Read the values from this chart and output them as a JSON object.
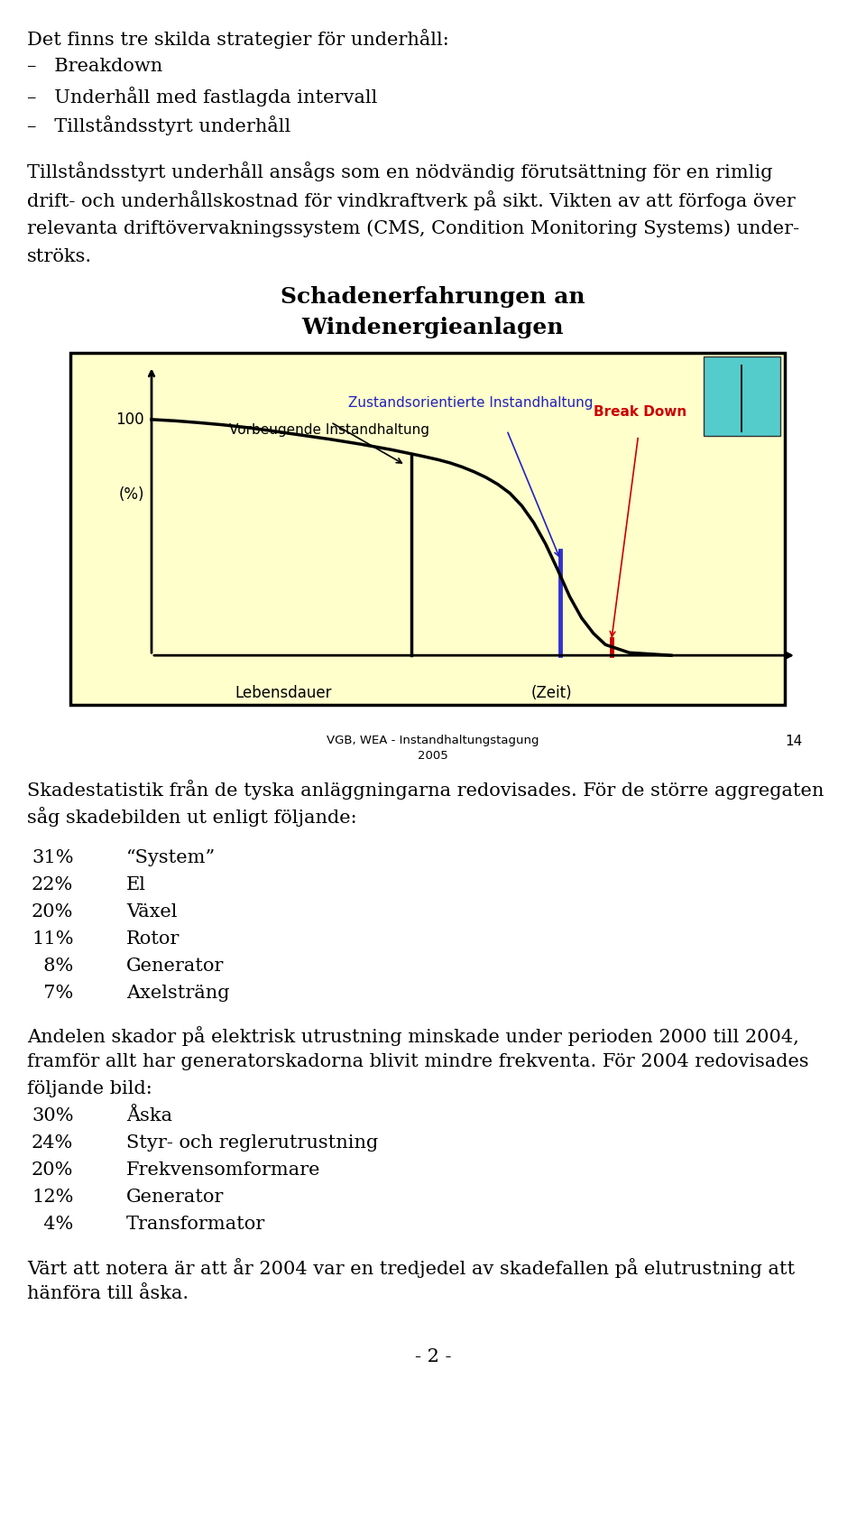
{
  "page_bg": "#ffffff",
  "font_family": "serif",
  "top_lines": [
    {
      "text": "Det finns tre skilda strategier för underhåll:",
      "indent": 0,
      "bold": false
    },
    {
      "text": "–   Breakdown",
      "indent": 0,
      "bold": false
    },
    {
      "text": "–   Underhåll med fastlagda intervall",
      "indent": 0,
      "bold": false
    },
    {
      "text": "–   Tillståndsstyrt underhåll",
      "indent": 0,
      "bold": false
    },
    {
      "text": "",
      "indent": 0,
      "bold": false
    },
    {
      "text": "Tillståndsstyrt underhåll ansågs som en nödvändig förutsättning för en rimlig",
      "indent": 0,
      "bold": false
    },
    {
      "text": "drift- och underhållskostnad för vindkraftverk på sikt. Vikten av att förfoga över",
      "indent": 0,
      "bold": false
    },
    {
      "text": "relevanta driftövervakningssystem (CMS, Condition Monitoring Systems) under-",
      "indent": 0,
      "bold": false
    },
    {
      "text": "ströks.",
      "indent": 0,
      "bold": false
    }
  ],
  "diag_title1": "Schadenerfahrungen an",
  "diag_title2": "Windenergieanlagen",
  "diagram_bg": "#ffffcc",
  "curve_label_vorb": "Vorbeugende Instandhaltung",
  "curve_label_zust": "Zustandsorientierte Instandhaltung",
  "curve_label_break": "Break Down",
  "label_100": "100",
  "label_pct": "(%)",
  "label_lebensdauer": "Lebensdauer",
  "label_zeit": "(Zeit)",
  "source_line1": "VGB, WEA - Instandhaltungstagung",
  "source_line2": "2005",
  "page_num": "14",
  "bottom_blocks": [
    {
      "text": "Skadestatistik från de tyska anläggningarna redovisades. För de större aggregaten",
      "type": "body"
    },
    {
      "text": "såg skadebilden ut enligt följande:",
      "type": "body"
    },
    {
      "text": "",
      "type": "gap"
    },
    {
      "pct": "31%",
      "label": "“System”",
      "type": "item"
    },
    {
      "pct": "22%",
      "label": "El",
      "type": "item"
    },
    {
      "pct": "20%",
      "label": "Växel",
      "type": "item"
    },
    {
      "pct": "11%",
      "label": "Rotor",
      "type": "item"
    },
    {
      "pct": "  8%",
      "label": "Generator",
      "type": "item"
    },
    {
      "pct": "  7%",
      "label": "Axelsträng",
      "type": "item"
    },
    {
      "text": "",
      "type": "gap"
    },
    {
      "text": "Andelen skador på elektrisk utrustning minskade under perioden 2000 till 2004,",
      "type": "body"
    },
    {
      "text": "framför allt har generatorskadorna blivit mindre frekventa. För 2004 redovisades",
      "type": "body"
    },
    {
      "text": "följande bild:",
      "type": "body"
    },
    {
      "pct": "30%",
      "label": "Åska",
      "type": "item"
    },
    {
      "pct": "24%",
      "label": "Styr- och reglerutrustning",
      "type": "item"
    },
    {
      "pct": "20%",
      "label": "Frekvensomformare",
      "type": "item"
    },
    {
      "pct": "12%",
      "label": "Generator",
      "type": "item"
    },
    {
      "pct": "  4%",
      "label": "Transformator",
      "type": "item"
    },
    {
      "text": "",
      "type": "gap"
    },
    {
      "text": "Värt att notera är att år 2004 var en tredjedel av skadefallen på elutrustning att",
      "type": "body"
    },
    {
      "text": "hänföra till åska.",
      "type": "body"
    }
  ],
  "footer": "- 2 -"
}
